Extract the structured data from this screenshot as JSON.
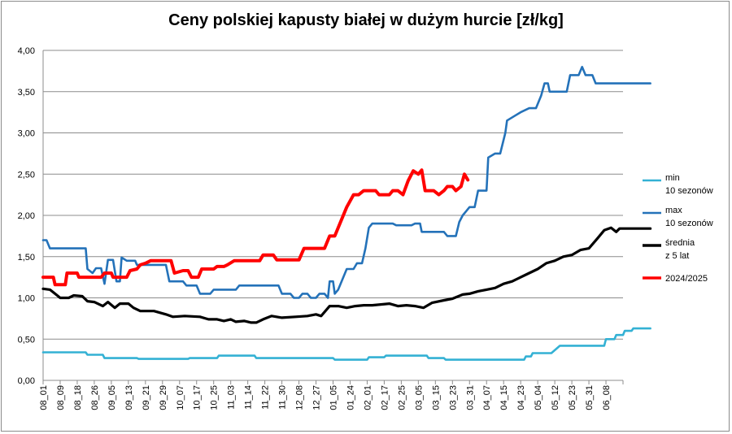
{
  "chart_data": {
    "type": "line",
    "title": "Ceny polskiej kapusty białej w dużym hurcie [zł/kg]",
    "xlabel": "",
    "ylabel": "",
    "ylim": [
      0,
      4
    ],
    "y_ticks": [
      "0,00",
      "0,50",
      "1,00",
      "1,50",
      "2,00",
      "2,50",
      "3,00",
      "3,50",
      "4,00"
    ],
    "x_tick_labels": [
      "08_01",
      "08_09",
      "08_18",
      "08_26",
      "09_05",
      "09_13",
      "09_21",
      "09_29",
      "10_07",
      "10_17",
      "10_25",
      "11_03",
      "11_14",
      "11_22",
      "11_30",
      "12_08",
      "12_27",
      "01_05",
      "01_24",
      "02_01",
      "02_17",
      "02_25",
      "03_05",
      "03_15",
      "03_23",
      "03_31",
      "04_07",
      "04_15",
      "04_23",
      "05_04",
      "05_12",
      "05_23",
      "05_31",
      "06_08"
    ],
    "grid": "horizontal",
    "legend_position": "right",
    "series": [
      {
        "name": "min 10 sezonów",
        "legend_lines": [
          "min",
          "10 sezonów"
        ],
        "color": "#33b1d4",
        "points": [
          [
            0,
            0.34
          ],
          [
            2.5,
            0.34
          ],
          [
            2.6,
            0.31
          ],
          [
            3.5,
            0.31
          ],
          [
            3.6,
            0.27
          ],
          [
            5.5,
            0.27
          ],
          [
            5.6,
            0.26
          ],
          [
            8.5,
            0.26
          ],
          [
            8.6,
            0.27
          ],
          [
            10.2,
            0.27
          ],
          [
            10.3,
            0.3
          ],
          [
            12.4,
            0.3
          ],
          [
            12.5,
            0.27
          ],
          [
            17.0,
            0.27
          ],
          [
            17.1,
            0.25
          ],
          [
            19.0,
            0.25
          ],
          [
            19.1,
            0.28
          ],
          [
            20.0,
            0.28
          ],
          [
            20.1,
            0.3
          ],
          [
            22.5,
            0.3
          ],
          [
            22.6,
            0.27
          ],
          [
            23.5,
            0.27
          ],
          [
            23.6,
            0.25
          ],
          [
            28.2,
            0.25
          ],
          [
            28.3,
            0.29
          ],
          [
            28.6,
            0.29
          ],
          [
            28.7,
            0.33
          ],
          [
            29.8,
            0.33
          ],
          [
            30.3,
            0.42
          ],
          [
            32.9,
            0.42
          ],
          [
            33.0,
            0.5
          ],
          [
            33.5,
            0.5
          ],
          [
            33.6,
            0.55
          ],
          [
            34.0,
            0.55
          ],
          [
            34.1,
            0.6
          ],
          [
            34.5,
            0.6
          ],
          [
            34.6,
            0.63
          ],
          [
            35.6,
            0.63
          ]
        ]
      },
      {
        "name": "max 10 sezonów",
        "legend_lines": [
          "max",
          "10 sezonów"
        ],
        "color": "#2472b9",
        "points": [
          [
            0,
            1.7
          ],
          [
            0.2,
            1.7
          ],
          [
            0.4,
            1.6
          ],
          [
            2.5,
            1.6
          ],
          [
            2.6,
            1.35
          ],
          [
            2.9,
            1.3
          ],
          [
            3.1,
            1.36
          ],
          [
            3.4,
            1.36
          ],
          [
            3.6,
            1.17
          ],
          [
            3.8,
            1.46
          ],
          [
            4.1,
            1.46
          ],
          [
            4.3,
            1.2
          ],
          [
            4.5,
            1.2
          ],
          [
            4.6,
            1.49
          ],
          [
            4.9,
            1.45
          ],
          [
            5.4,
            1.45
          ],
          [
            5.5,
            1.4
          ],
          [
            6.5,
            1.4
          ],
          [
            7.2,
            1.4
          ],
          [
            7.4,
            1.2
          ],
          [
            8.2,
            1.2
          ],
          [
            8.4,
            1.15
          ],
          [
            9.0,
            1.15
          ],
          [
            9.2,
            1.05
          ],
          [
            9.8,
            1.05
          ],
          [
            10.0,
            1.1
          ],
          [
            11.3,
            1.1
          ],
          [
            11.5,
            1.15
          ],
          [
            13.8,
            1.15
          ],
          [
            14.0,
            1.05
          ],
          [
            14.5,
            1.05
          ],
          [
            14.7,
            1.0
          ],
          [
            15.0,
            1.0
          ],
          [
            15.2,
            1.05
          ],
          [
            15.5,
            1.05
          ],
          [
            15.7,
            1.0
          ],
          [
            16.0,
            1.0
          ],
          [
            16.2,
            1.05
          ],
          [
            16.5,
            1.05
          ],
          [
            16.7,
            1.0
          ],
          [
            16.8,
            1.2
          ],
          [
            17.0,
            1.2
          ],
          [
            17.1,
            1.05
          ],
          [
            17.3,
            1.1
          ],
          [
            17.5,
            1.2
          ],
          [
            17.8,
            1.35
          ],
          [
            18.2,
            1.35
          ],
          [
            18.4,
            1.42
          ],
          [
            18.7,
            1.42
          ],
          [
            18.9,
            1.6
          ],
          [
            19.1,
            1.85
          ],
          [
            19.3,
            1.9
          ],
          [
            20.5,
            1.9
          ],
          [
            20.7,
            1.88
          ],
          [
            21.6,
            1.88
          ],
          [
            21.8,
            1.9
          ],
          [
            22.1,
            1.9
          ],
          [
            22.2,
            1.8
          ],
          [
            23.5,
            1.8
          ],
          [
            23.7,
            1.75
          ],
          [
            24.2,
            1.75
          ],
          [
            24.4,
            1.92
          ],
          [
            24.6,
            2.0
          ],
          [
            24.8,
            2.05
          ],
          [
            25.0,
            2.1
          ],
          [
            25.3,
            2.1
          ],
          [
            25.5,
            2.3
          ],
          [
            26.0,
            2.3
          ],
          [
            26.1,
            2.7
          ],
          [
            26.5,
            2.75
          ],
          [
            26.8,
            2.75
          ],
          [
            27.1,
            3.0
          ],
          [
            27.2,
            3.15
          ],
          [
            27.6,
            3.2
          ],
          [
            28.0,
            3.25
          ],
          [
            28.5,
            3.3
          ],
          [
            28.9,
            3.3
          ],
          [
            29.2,
            3.45
          ],
          [
            29.4,
            3.6
          ],
          [
            29.6,
            3.6
          ],
          [
            29.7,
            3.5
          ],
          [
            30.7,
            3.5
          ],
          [
            30.9,
            3.7
          ],
          [
            31.4,
            3.7
          ],
          [
            31.6,
            3.8
          ],
          [
            31.8,
            3.7
          ],
          [
            32.2,
            3.7
          ],
          [
            32.4,
            3.6
          ],
          [
            33.4,
            3.6
          ],
          [
            35.6,
            3.6
          ]
        ]
      },
      {
        "name": "średnia z 5 lat",
        "legend_lines": [
          "średnia",
          "z 5 lat"
        ],
        "color": "#000000",
        "points": [
          [
            0,
            1.11
          ],
          [
            0.4,
            1.1
          ],
          [
            0.7,
            1.05
          ],
          [
            1.0,
            1.0
          ],
          [
            1.5,
            1.0
          ],
          [
            1.8,
            1.03
          ],
          [
            2.3,
            1.02
          ],
          [
            2.6,
            0.96
          ],
          [
            3.0,
            0.95
          ],
          [
            3.5,
            0.9
          ],
          [
            3.8,
            0.95
          ],
          [
            4.2,
            0.88
          ],
          [
            4.5,
            0.93
          ],
          [
            5.0,
            0.93
          ],
          [
            5.3,
            0.88
          ],
          [
            5.7,
            0.84
          ],
          [
            6.5,
            0.84
          ],
          [
            7.2,
            0.8
          ],
          [
            7.6,
            0.77
          ],
          [
            8.3,
            0.78
          ],
          [
            9.2,
            0.77
          ],
          [
            9.7,
            0.74
          ],
          [
            10.2,
            0.74
          ],
          [
            10.6,
            0.72
          ],
          [
            11.0,
            0.74
          ],
          [
            11.3,
            0.71
          ],
          [
            11.8,
            0.72
          ],
          [
            12.2,
            0.7
          ],
          [
            12.5,
            0.7
          ],
          [
            12.9,
            0.74
          ],
          [
            13.4,
            0.78
          ],
          [
            14.0,
            0.76
          ],
          [
            14.8,
            0.77
          ],
          [
            15.5,
            0.78
          ],
          [
            16.0,
            0.8
          ],
          [
            16.3,
            0.78
          ],
          [
            16.8,
            0.9
          ],
          [
            17.3,
            0.9
          ],
          [
            17.8,
            0.88
          ],
          [
            18.3,
            0.9
          ],
          [
            18.8,
            0.91
          ],
          [
            19.3,
            0.91
          ],
          [
            19.8,
            0.92
          ],
          [
            20.3,
            0.93
          ],
          [
            20.8,
            0.9
          ],
          [
            21.3,
            0.91
          ],
          [
            21.8,
            0.9
          ],
          [
            22.3,
            0.88
          ],
          [
            22.8,
            0.94
          ],
          [
            23.5,
            0.97
          ],
          [
            24.0,
            0.99
          ],
          [
            24.6,
            1.04
          ],
          [
            25.0,
            1.05
          ],
          [
            25.5,
            1.08
          ],
          [
            26.0,
            1.1
          ],
          [
            26.5,
            1.12
          ],
          [
            27.0,
            1.17
          ],
          [
            27.5,
            1.2
          ],
          [
            28.0,
            1.25
          ],
          [
            28.5,
            1.3
          ],
          [
            29.0,
            1.35
          ],
          [
            29.5,
            1.42
          ],
          [
            30.0,
            1.45
          ],
          [
            30.5,
            1.5
          ],
          [
            31.0,
            1.52
          ],
          [
            31.5,
            1.58
          ],
          [
            32.0,
            1.6
          ],
          [
            32.5,
            1.72
          ],
          [
            32.9,
            1.82
          ],
          [
            33.3,
            1.85
          ],
          [
            33.6,
            1.8
          ],
          [
            33.8,
            1.84
          ],
          [
            35.6,
            1.84
          ]
        ]
      },
      {
        "name": "2024/2025",
        "legend_lines": [
          "2024/2025"
        ],
        "color": "#ff0000",
        "points": [
          [
            0,
            1.25
          ],
          [
            0.6,
            1.25
          ],
          [
            0.7,
            1.16
          ],
          [
            1.3,
            1.16
          ],
          [
            1.4,
            1.3
          ],
          [
            2.0,
            1.3
          ],
          [
            2.1,
            1.25
          ],
          [
            3.4,
            1.25
          ],
          [
            3.6,
            1.3
          ],
          [
            4.0,
            1.3
          ],
          [
            4.1,
            1.25
          ],
          [
            4.9,
            1.25
          ],
          [
            5.1,
            1.33
          ],
          [
            5.5,
            1.35
          ],
          [
            5.7,
            1.4
          ],
          [
            6.0,
            1.42
          ],
          [
            6.3,
            1.45
          ],
          [
            6.8,
            1.45
          ],
          [
            7.5,
            1.45
          ],
          [
            7.7,
            1.3
          ],
          [
            8.2,
            1.33
          ],
          [
            8.5,
            1.33
          ],
          [
            8.7,
            1.25
          ],
          [
            9.1,
            1.25
          ],
          [
            9.3,
            1.35
          ],
          [
            10.0,
            1.35
          ],
          [
            10.2,
            1.38
          ],
          [
            10.6,
            1.38
          ],
          [
            10.8,
            1.4
          ],
          [
            11.2,
            1.45
          ],
          [
            12.7,
            1.45
          ],
          [
            12.9,
            1.52
          ],
          [
            13.5,
            1.52
          ],
          [
            13.7,
            1.46
          ],
          [
            15.0,
            1.46
          ],
          [
            15.3,
            1.6
          ],
          [
            16.5,
            1.6
          ],
          [
            16.8,
            1.75
          ],
          [
            17.1,
            1.75
          ],
          [
            17.4,
            1.9
          ],
          [
            17.8,
            2.1
          ],
          [
            18.2,
            2.25
          ],
          [
            18.5,
            2.25
          ],
          [
            18.8,
            2.3
          ],
          [
            19.5,
            2.3
          ],
          [
            19.7,
            2.25
          ],
          [
            20.3,
            2.25
          ],
          [
            20.5,
            2.3
          ],
          [
            20.8,
            2.3
          ],
          [
            21.1,
            2.25
          ],
          [
            21.4,
            2.42
          ],
          [
            21.7,
            2.54
          ],
          [
            22.0,
            2.5
          ],
          [
            22.2,
            2.55
          ],
          [
            22.4,
            2.3
          ],
          [
            22.9,
            2.3
          ],
          [
            23.2,
            2.25
          ],
          [
            23.5,
            2.3
          ],
          [
            23.7,
            2.35
          ],
          [
            24.0,
            2.35
          ],
          [
            24.2,
            2.3
          ],
          [
            24.5,
            2.35
          ],
          [
            24.7,
            2.5
          ],
          [
            24.9,
            2.43
          ]
        ]
      }
    ]
  }
}
